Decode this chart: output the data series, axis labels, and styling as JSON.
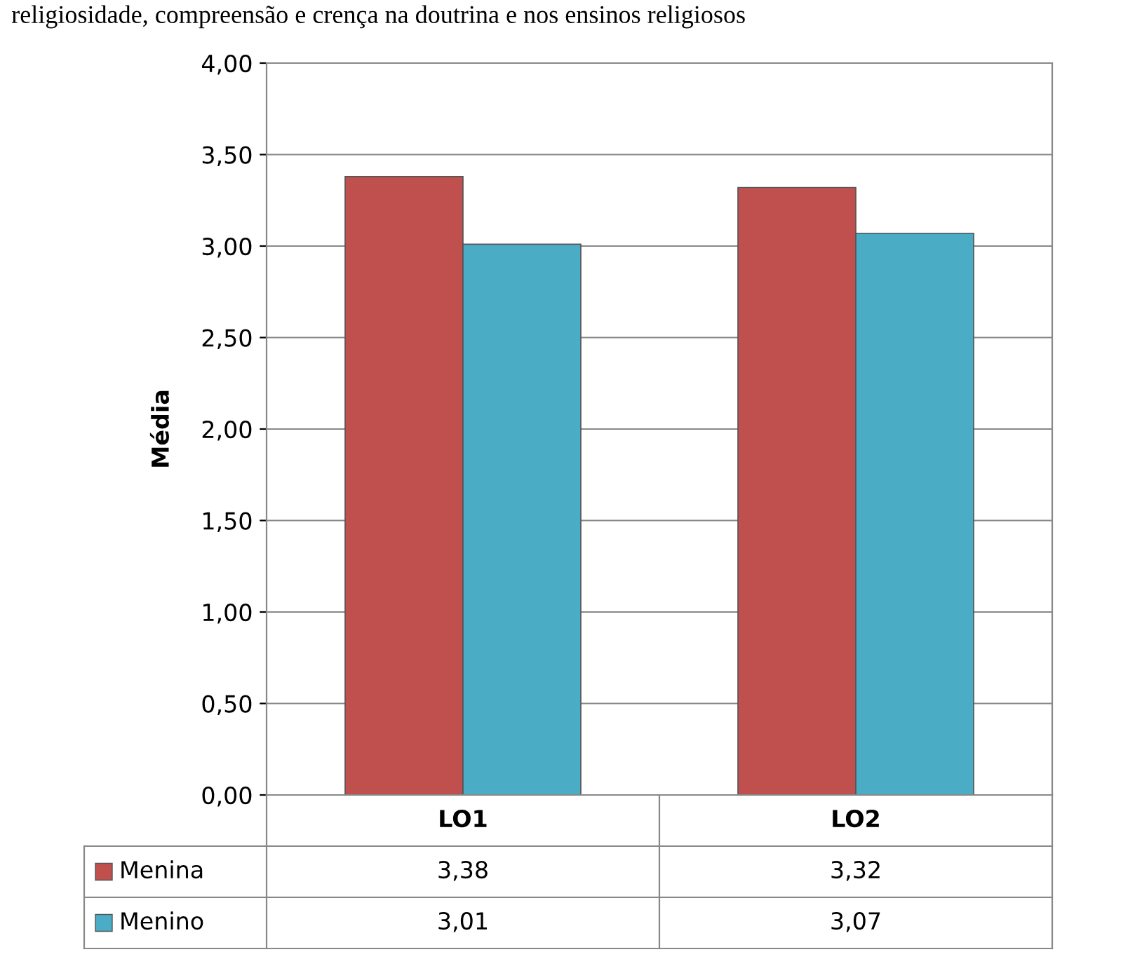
{
  "chart_data": {
    "type": "bar",
    "title": "religiosidade, compreensão e crença na doutrina e nos ensinos religiosos",
    "ylabel": "Média",
    "categories": [
      "LO1",
      "LO2"
    ],
    "series": [
      {
        "name": "Menina",
        "color": "#c0504d",
        "values": [
          3.38,
          3.32
        ],
        "value_labels": [
          "3,38",
          "3,32"
        ]
      },
      {
        "name": "Menino",
        "color": "#4bacc6",
        "values": [
          3.01,
          3.07
        ],
        "value_labels": [
          "3,01",
          "3,07"
        ]
      }
    ],
    "ylim": [
      0,
      4
    ],
    "yticks": [
      {
        "value": 0,
        "label": "0,00"
      },
      {
        "value": 0.5,
        "label": "0,50"
      },
      {
        "value": 1,
        "label": "1,00"
      },
      {
        "value": 1.5,
        "label": "1,50"
      },
      {
        "value": 2,
        "label": "2,00"
      },
      {
        "value": 2.5,
        "label": "2,50"
      },
      {
        "value": 3,
        "label": "3,00"
      },
      {
        "value": 3.5,
        "label": "3,50"
      },
      {
        "value": 4,
        "label": "4,00"
      }
    ],
    "grid": "y",
    "legend": "bottom left"
  }
}
